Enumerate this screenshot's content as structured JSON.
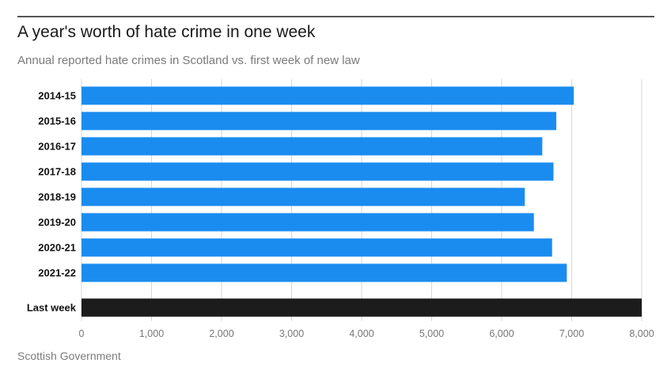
{
  "header": {
    "title": "A year's worth of hate crime in one week",
    "subtitle": "Annual reported hate crimes in Scotland vs. first week of new law"
  },
  "footer": {
    "source": "Scottish Government"
  },
  "colors": {
    "bar": "#1a8cf0",
    "highlight_bar": "#1c1c1c",
    "grid": "#d6d6d6"
  },
  "chart_data": {
    "type": "bar",
    "orientation": "horizontal",
    "title": "A year's worth of hate crime in one week",
    "subtitle": "Annual reported hate crimes in Scotland vs. first week of new law",
    "xlabel": "",
    "ylabel": "",
    "categories": [
      "2014-15",
      "2015-16",
      "2016-17",
      "2017-18",
      "2018-19",
      "2019-20",
      "2020-21",
      "2021-22",
      "Last week"
    ],
    "values": [
      7030,
      6780,
      6580,
      6740,
      6330,
      6460,
      6720,
      6930,
      8000
    ],
    "highlight": "Last week",
    "xlim": [
      0,
      8000
    ],
    "xticks": [
      0,
      1000,
      2000,
      3000,
      4000,
      5000,
      6000,
      7000,
      8000
    ],
    "xtick_labels": [
      "0",
      "1,000",
      "2,000",
      "3,000",
      "4,000",
      "5,000",
      "6,000",
      "7,000",
      "8,000"
    ],
    "grid": "vertical",
    "legend": "none"
  }
}
